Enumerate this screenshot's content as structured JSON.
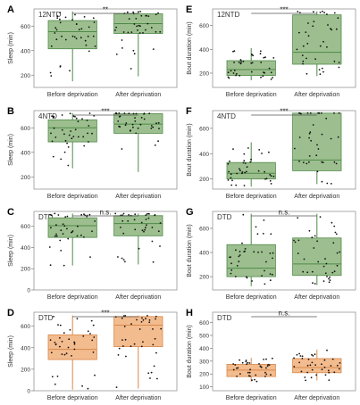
{
  "figure": {
    "panel_labels": [
      "A",
      "B",
      "C",
      "D",
      "E",
      "F",
      "G",
      "H"
    ]
  },
  "chart_data": [
    {
      "type": "box",
      "panel": "A",
      "title": "12NTD",
      "xlabel": "",
      "ylabel": "Sleep (min)",
      "ylim": [
        100,
        740
      ],
      "yticks": [
        200,
        400,
        600
      ],
      "categories": [
        "Before deprivation",
        "After deprivation"
      ],
      "color": "#9dbf8f",
      "edge": "#4f8a47",
      "boxes": [
        {
          "min": 150,
          "q1": 415,
          "median": 555,
          "q3": 645,
          "max": 720
        },
        {
          "min": 190,
          "q1": 540,
          "median": 620,
          "q3": 700,
          "max": 720
        }
      ],
      "significance": "**"
    },
    {
      "type": "box",
      "panel": "B",
      "title": "4NTD",
      "xlabel": "",
      "ylabel": "Sleep (min)",
      "ylim": [
        100,
        740
      ],
      "yticks": [
        200,
        400,
        600
      ],
      "categories": [
        "Before deprivation",
        "After deprivation"
      ],
      "color": "#9dbf8f",
      "edge": "#4f8a47",
      "boxes": [
        {
          "min": 270,
          "q1": 485,
          "median": 600,
          "q3": 665,
          "max": 720
        },
        {
          "min": 240,
          "q1": 555,
          "median": 630,
          "q3": 715,
          "max": 720
        }
      ],
      "significance": "***"
    },
    {
      "type": "box",
      "panel": "C",
      "title": "DTD",
      "xlabel": "",
      "ylabel": "Sleep (min)",
      "ylim": [
        0,
        740
      ],
      "yticks": [
        0,
        200,
        400,
        600
      ],
      "categories": [
        "Before deprivation",
        "After deprivation"
      ],
      "color": "#9dbf8f",
      "edge": "#4f8a47",
      "boxes": [
        {
          "min": 230,
          "q1": 495,
          "median": 605,
          "q3": 680,
          "max": 720
        },
        {
          "min": 240,
          "q1": 510,
          "median": 625,
          "q3": 700,
          "max": 720
        }
      ],
      "significance": "n.s."
    },
    {
      "type": "box",
      "panel": "D",
      "title": "DTD",
      "xlabel": "",
      "ylabel": "Sleep (min)",
      "ylim": [
        0,
        730
      ],
      "yticks": [
        0,
        200,
        400,
        600
      ],
      "categories": [
        "Before deprivation",
        "After deprivation"
      ],
      "color": "#f3bc8f",
      "edge": "#d9884a",
      "boxes": [
        {
          "min": 10,
          "q1": 290,
          "median": 385,
          "q3": 520,
          "max": 700
        },
        {
          "min": 20,
          "q1": 410,
          "median": 610,
          "q3": 690,
          "max": 700
        }
      ],
      "significance": "***"
    },
    {
      "type": "box",
      "panel": "E",
      "title": "12NTD",
      "xlabel": "",
      "ylabel": "Bout duration (min)",
      "ylim": [
        80,
        740
      ],
      "yticks": [
        200,
        400,
        600
      ],
      "categories": [
        "Before deprivation",
        "After deprivation"
      ],
      "color": "#9dbf8f",
      "edge": "#4f8a47",
      "boxes": [
        {
          "min": 140,
          "q1": 180,
          "median": 230,
          "q3": 305,
          "max": 410
        },
        {
          "min": 175,
          "q1": 275,
          "median": 375,
          "q3": 690,
          "max": 720
        }
      ],
      "significance": "***"
    },
    {
      "type": "box",
      "panel": "F",
      "title": "4NTD",
      "xlabel": "",
      "ylabel": "Bout duration (min)",
      "ylim": [
        120,
        740
      ],
      "yticks": [
        200,
        400,
        600
      ],
      "categories": [
        "Before deprivation",
        "After deprivation"
      ],
      "color": "#9dbf8f",
      "edge": "#4f8a47",
      "boxes": [
        {
          "min": 140,
          "q1": 200,
          "median": 245,
          "q3": 330,
          "max": 490
        },
        {
          "min": 160,
          "q1": 265,
          "median": 350,
          "q3": 720,
          "max": 720
        }
      ],
      "significance": "***"
    },
    {
      "type": "box",
      "panel": "G",
      "title": "DTD",
      "xlabel": "",
      "ylabel": "Bout duration (min)",
      "ylim": [
        90,
        740
      ],
      "yticks": [
        200,
        400,
        600
      ],
      "categories": [
        "Before deprivation",
        "After deprivation"
      ],
      "color": "#9dbf8f",
      "edge": "#4f8a47",
      "boxes": [
        {
          "min": 120,
          "q1": 200,
          "median": 270,
          "q3": 465,
          "max": 720
        },
        {
          "min": 130,
          "q1": 210,
          "median": 305,
          "q3": 520,
          "max": 720
        }
      ],
      "significance": "n.s."
    },
    {
      "type": "box",
      "panel": "H",
      "title": "DTD",
      "xlabel": "",
      "ylabel": "Bout duration (min)",
      "ylim": [
        70,
        680
      ],
      "yticks": [
        100,
        200,
        300,
        400,
        500,
        600
      ],
      "categories": [
        "Before deprivation",
        "After deprivation"
      ],
      "color": "#f3bc8f",
      "edge": "#d9884a",
      "boxes": [
        {
          "min": 140,
          "q1": 180,
          "median": 230,
          "q3": 275,
          "max": 325
        },
        {
          "min": 150,
          "q1": 210,
          "median": 250,
          "q3": 320,
          "max": 390
        }
      ],
      "significance": "n.s."
    }
  ]
}
